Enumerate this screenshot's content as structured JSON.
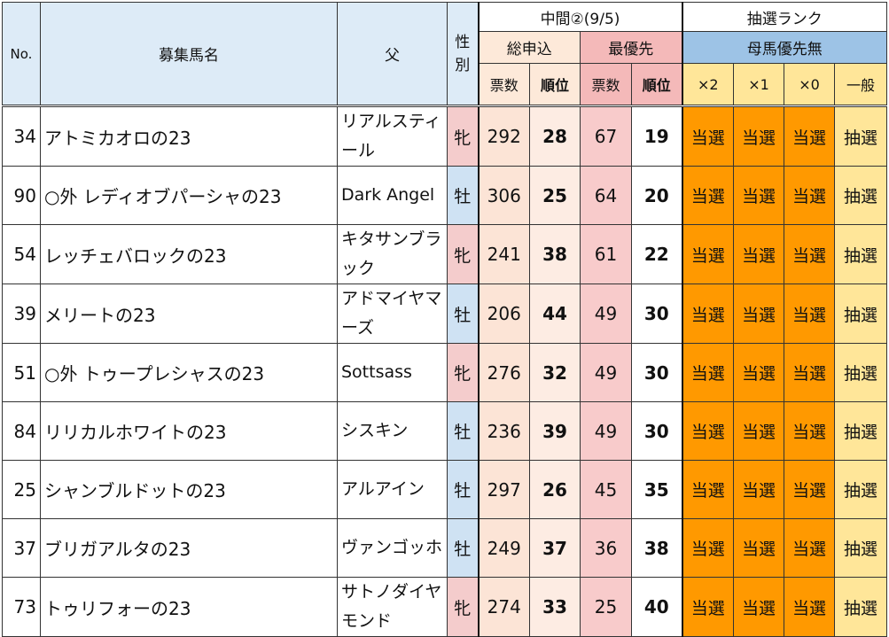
{
  "header": {
    "no": "No.",
    "name": "募集馬名",
    "sire": "父",
    "sex_line1": "性",
    "sex_line2": "別",
    "interim": "中間②(9/5)",
    "total": "総申込",
    "top_priority": "最優先",
    "votes": "票数",
    "rank": "順位",
    "lottery_rank": "抽選ランク",
    "dam_priority_none": "母馬優先無",
    "x2": "×2",
    "x1": "×1",
    "x0": "×0",
    "general": "一般"
  },
  "rows": [
    {
      "no": "34",
      "name": "アトミカオロの23",
      "sire": "リアルスティール",
      "sex": "牝",
      "sex_type": "f",
      "total_votes": "292",
      "total_rank": "28",
      "top_votes": "67",
      "top_rank": "19",
      "x2": "当選",
      "x1": "当選",
      "x0": "当選",
      "general": "抽選"
    },
    {
      "no": "90",
      "name": "○外 レディオブパーシャの23",
      "sire": "Dark Angel",
      "sex": "牡",
      "sex_type": "m",
      "total_votes": "306",
      "total_rank": "25",
      "top_votes": "64",
      "top_rank": "20",
      "x2": "当選",
      "x1": "当選",
      "x0": "当選",
      "general": "抽選"
    },
    {
      "no": "54",
      "name": "レッチェバロックの23",
      "sire": "キタサンブラック",
      "sex": "牝",
      "sex_type": "f",
      "total_votes": "241",
      "total_rank": "38",
      "top_votes": "61",
      "top_rank": "22",
      "x2": "当選",
      "x1": "当選",
      "x0": "当選",
      "general": "抽選"
    },
    {
      "no": "39",
      "name": "メリートの23",
      "sire": "アドマイヤマーズ",
      "sex": "牡",
      "sex_type": "m",
      "total_votes": "206",
      "total_rank": "44",
      "top_votes": "49",
      "top_rank": "30",
      "x2": "当選",
      "x1": "当選",
      "x0": "当選",
      "general": "抽選"
    },
    {
      "no": "51",
      "name": "○外 トゥープレシャスの23",
      "sire": "Sottsass",
      "sex": "牝",
      "sex_type": "f",
      "total_votes": "276",
      "total_rank": "32",
      "top_votes": "49",
      "top_rank": "30",
      "x2": "当選",
      "x1": "当選",
      "x0": "当選",
      "general": "抽選"
    },
    {
      "no": "84",
      "name": "リリカルホワイトの23",
      "sire": "シスキン",
      "sex": "牡",
      "sex_type": "m",
      "total_votes": "236",
      "total_rank": "39",
      "top_votes": "49",
      "top_rank": "30",
      "x2": "当選",
      "x1": "当選",
      "x0": "当選",
      "general": "抽選"
    },
    {
      "no": "25",
      "name": "シャンブルドットの23",
      "sire": "アルアイン",
      "sex": "牡",
      "sex_type": "m",
      "total_votes": "297",
      "total_rank": "26",
      "top_votes": "45",
      "top_rank": "35",
      "x2": "当選",
      "x1": "当選",
      "x0": "当選",
      "general": "抽選"
    },
    {
      "no": "37",
      "name": "ブリガアルタの23",
      "sire": "ヴァンゴッホ",
      "sex": "牡",
      "sex_type": "m",
      "total_votes": "249",
      "total_rank": "37",
      "top_votes": "36",
      "top_rank": "38",
      "x2": "当選",
      "x1": "当選",
      "x0": "当選",
      "general": "抽選"
    },
    {
      "no": "73",
      "name": "トゥリフォーの23",
      "sire": "サトノダイヤモンド",
      "sex": "牝",
      "sex_type": "f",
      "total_votes": "274",
      "total_rank": "33",
      "top_votes": "25",
      "top_rank": "40",
      "x2": "当選",
      "x1": "当選",
      "x0": "当選",
      "general": "抽選"
    }
  ],
  "colors": {
    "win": "#ff9900",
    "lottery": "#ffe699",
    "female": "#f4cccc",
    "male": "#cfe2f3",
    "header_blue": "#ddebf7"
  }
}
